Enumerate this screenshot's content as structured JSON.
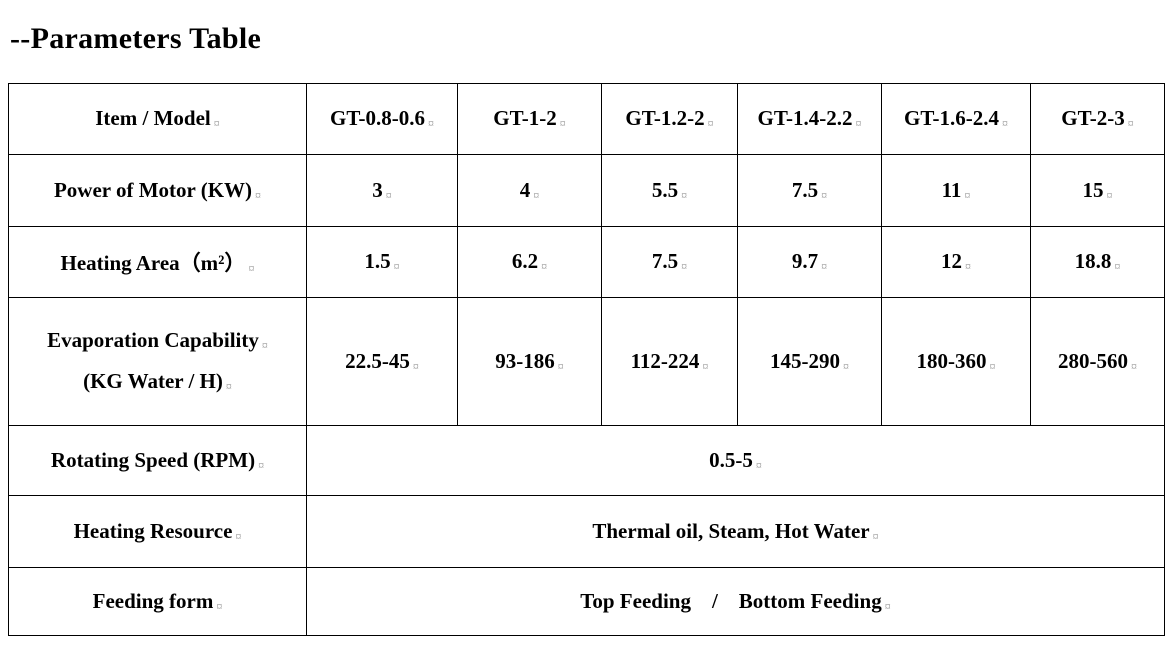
{
  "page": {
    "title": "--Parameters Table"
  },
  "marks": {
    "cell_end": "¤"
  },
  "table": {
    "header": [
      "Item / Model",
      "GT-0.8-0.6",
      "GT-1-2",
      "GT-1.2-2",
      "GT-1.4-2.2",
      "GT-1.6-2.4",
      "GT-2-3"
    ],
    "rows": [
      {
        "label": "Power of Motor (KW)",
        "values": [
          "3",
          "4",
          "5.5",
          "7.5",
          "11",
          "15"
        ]
      },
      {
        "label": "Heating Area（m²）",
        "values": [
          "1.5",
          "6.2",
          "7.5",
          "9.7",
          "12",
          "18.8"
        ]
      },
      {
        "label_line1": "Evaporation Capability",
        "label_line2": "(KG Water / H)",
        "values": [
          "22.5-45",
          "93-186",
          "112-224",
          "145-290",
          "180-360",
          "280-560"
        ]
      },
      {
        "label": "Rotating Speed (RPM)",
        "value": "0.5-5"
      },
      {
        "label": "Heating Resource",
        "value": "Thermal oil, Steam, Hot Water"
      },
      {
        "label": "Feeding form",
        "value": "Top Feeding    /    Bottom Feeding"
      }
    ]
  }
}
